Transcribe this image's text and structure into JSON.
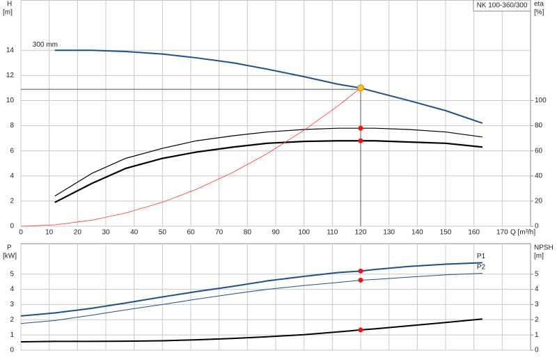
{
  "chart_data": [
    {
      "type": "line",
      "title": "NK 100-360/300",
      "ylabel": "H",
      "yunit": "[m]",
      "y2label": "eta",
      "y2unit": "[%]",
      "xlabel": "Q [m³/h]",
      "x": [
        0,
        12,
        25,
        37,
        50,
        62,
        75,
        87,
        100,
        112,
        120,
        125,
        137,
        150,
        163
      ],
      "xlim": [
        0,
        180
      ],
      "xticks": [
        0,
        10,
        20,
        30,
        40,
        50,
        60,
        70,
        80,
        90,
        100,
        110,
        120,
        130,
        140,
        150,
        160,
        170
      ],
      "ylim": [
        0,
        18
      ],
      "yticks": [
        0,
        2,
        4,
        6,
        8,
        10,
        12,
        14
      ],
      "y2lim": [
        0,
        180
      ],
      "y2ticks": [
        0,
        20,
        40,
        60,
        80,
        100
      ],
      "grid": true,
      "show_xtick_labels": true,
      "series": [
        {
          "name": "300 mm",
          "label_at": "start",
          "color": "#1f4e8c",
          "width": 2,
          "axis": "y",
          "values": [
            null,
            14.0,
            14.0,
            13.9,
            13.7,
            13.4,
            13.0,
            12.5,
            11.9,
            11.3,
            11.0,
            10.7,
            10.0,
            9.2,
            8.2
          ]
        },
        {
          "color": "#000000",
          "width": 1.2,
          "axis": "y2",
          "values": [
            null,
            24,
            42,
            54,
            62,
            68,
            72,
            75,
            77,
            78,
            78,
            78,
            77,
            75,
            71
          ]
        },
        {
          "color": "#000000",
          "width": 2.2,
          "axis": "y2",
          "values": [
            null,
            19,
            34,
            46,
            54,
            59,
            63,
            66,
            67.5,
            68,
            68,
            68,
            67,
            66,
            63
          ]
        },
        {
          "color": "#ff3030",
          "width": 0.8,
          "axis": "y",
          "values": [
            0,
            0.11,
            0.48,
            1.05,
            1.91,
            2.94,
            4.3,
            5.78,
            7.64,
            9.58,
            11,
            null,
            null,
            null,
            null
          ]
        }
      ],
      "guide": {
        "x": 120,
        "y": 10.9
      },
      "markers": [
        {
          "x": 120,
          "y": 11,
          "axis": "y",
          "color": "#f5c518"
        },
        {
          "x": 120,
          "y": 78,
          "axis": "y2",
          "color": "#ee1111"
        },
        {
          "x": 120,
          "y": 68,
          "axis": "y2",
          "color": "#ee1111"
        }
      ]
    },
    {
      "type": "line",
      "ylabel": "P",
      "yunit": "[kW]",
      "y2label": "NPSH",
      "y2unit": "[m]",
      "x": [
        0,
        12,
        25,
        37,
        50,
        62,
        75,
        87,
        100,
        112,
        120,
        125,
        137,
        150,
        163
      ],
      "xlim": [
        0,
        180
      ],
      "xticks": [
        0,
        10,
        20,
        30,
        40,
        50,
        60,
        70,
        80,
        90,
        100,
        110,
        120,
        130,
        140,
        150,
        160,
        170
      ],
      "ylim": [
        0,
        7
      ],
      "yticks": [
        0,
        1,
        2,
        3,
        4,
        5
      ],
      "y2lim": [
        0,
        7
      ],
      "y2ticks": [
        0,
        1,
        2,
        3,
        4,
        5
      ],
      "grid": true,
      "show_xtick_labels": false,
      "series": [
        {
          "name": "P1",
          "label_at": "end",
          "color": "#1f4e8c",
          "width": 2,
          "axis": "y",
          "values": [
            2.25,
            2.45,
            2.75,
            3.1,
            3.5,
            3.85,
            4.2,
            4.55,
            4.85,
            5.1,
            5.2,
            5.3,
            5.5,
            5.65,
            5.75
          ]
        },
        {
          "name": "P2",
          "label_at": "end",
          "color": "#1f4e8c",
          "width": 1,
          "axis": "y",
          "values": [
            1.75,
            1.95,
            2.3,
            2.65,
            3.0,
            3.35,
            3.7,
            4.0,
            4.25,
            4.45,
            4.6,
            4.65,
            4.8,
            4.95,
            5.05
          ]
        },
        {
          "color": "#000000",
          "width": 2,
          "axis": "y2",
          "values": [
            0.55,
            0.58,
            0.58,
            0.59,
            0.62,
            0.68,
            0.77,
            0.88,
            1.02,
            1.2,
            1.33,
            1.4,
            1.6,
            1.82,
            2.05
          ]
        }
      ],
      "markers": [
        {
          "x": 120,
          "y": 5.2,
          "axis": "y",
          "color": "#ee1111"
        },
        {
          "x": 120,
          "y": 4.6,
          "axis": "y",
          "color": "#ee1111"
        },
        {
          "x": 120,
          "y": 1.33,
          "axis": "y2",
          "color": "#ee1111"
        }
      ]
    }
  ]
}
